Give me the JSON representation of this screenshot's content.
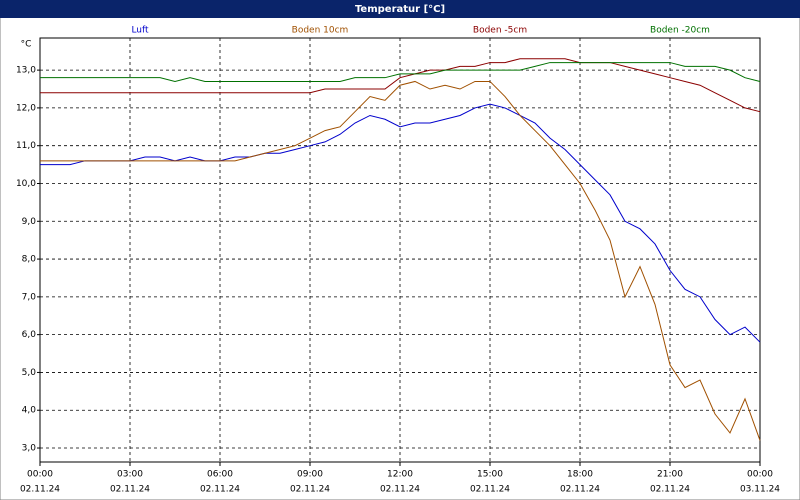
{
  "chart_data": {
    "type": "line",
    "title": "Temperatur [°C]",
    "y_unit": "°C",
    "x": [
      "02.11.24 00:00",
      "02.11.24 00:30",
      "02.11.24 01:00",
      "02.11.24 01:30",
      "02.11.24 02:00",
      "02.11.24 02:30",
      "02.11.24 03:00",
      "02.11.24 03:30",
      "02.11.24 04:00",
      "02.11.24 04:30",
      "02.11.24 05:00",
      "02.11.24 05:30",
      "02.11.24 06:00",
      "02.11.24 06:30",
      "02.11.24 07:00",
      "02.11.24 07:30",
      "02.11.24 08:00",
      "02.11.24 08:30",
      "02.11.24 09:00",
      "02.11.24 09:30",
      "02.11.24 10:00",
      "02.11.24 10:30",
      "02.11.24 11:00",
      "02.11.24 11:30",
      "02.11.24 12:00",
      "02.11.24 12:30",
      "02.11.24 13:00",
      "02.11.24 13:30",
      "02.11.24 14:00",
      "02.11.24 14:30",
      "02.11.24 15:00",
      "02.11.24 15:30",
      "02.11.24 16:00",
      "02.11.24 16:30",
      "02.11.24 17:00",
      "02.11.24 17:30",
      "02.11.24 18:00",
      "02.11.24 18:30",
      "02.11.24 19:00",
      "02.11.24 19:30",
      "02.11.24 20:00",
      "02.11.24 20:30",
      "02.11.24 21:00",
      "02.11.24 21:30",
      "02.11.24 22:00",
      "02.11.24 22:30",
      "02.11.24 23:00",
      "02.11.24 23:30",
      "03.11.24 00:00"
    ],
    "series": [
      {
        "name": "Luft",
        "color": "#0000cc",
        "values": [
          10.5,
          10.5,
          10.5,
          10.6,
          10.6,
          10.6,
          10.6,
          10.7,
          10.7,
          10.6,
          10.7,
          10.6,
          10.6,
          10.7,
          10.7,
          10.8,
          10.8,
          10.9,
          11.0,
          11.1,
          11.3,
          11.6,
          11.8,
          11.7,
          11.5,
          11.6,
          11.6,
          11.7,
          11.8,
          12.0,
          12.1,
          12.0,
          11.8,
          11.6,
          11.2,
          10.9,
          10.5,
          10.1,
          9.7,
          9.0,
          8.8,
          8.4,
          7.7,
          7.2,
          7.0,
          6.4,
          6.0,
          6.2,
          5.8
        ]
      },
      {
        "name": "Boden 10cm",
        "color": "#a05000",
        "values": [
          10.6,
          10.6,
          10.6,
          10.6,
          10.6,
          10.6,
          10.6,
          10.6,
          10.6,
          10.6,
          10.6,
          10.6,
          10.6,
          10.6,
          10.7,
          10.8,
          10.9,
          11.0,
          11.2,
          11.4,
          11.5,
          11.9,
          12.3,
          12.2,
          12.6,
          12.7,
          12.5,
          12.6,
          12.5,
          12.7,
          12.7,
          12.3,
          11.8,
          11.4,
          11.0,
          10.5,
          10.0,
          9.3,
          8.5,
          7.0,
          7.8,
          6.8,
          5.2,
          4.6,
          4.8,
          3.9,
          3.4,
          4.3,
          3.2
        ]
      },
      {
        "name": "Boden -5cm",
        "color": "#8b0000",
        "values": [
          12.4,
          12.4,
          12.4,
          12.4,
          12.4,
          12.4,
          12.4,
          12.4,
          12.4,
          12.4,
          12.4,
          12.4,
          12.4,
          12.4,
          12.4,
          12.4,
          12.4,
          12.4,
          12.4,
          12.5,
          12.5,
          12.5,
          12.5,
          12.5,
          12.8,
          12.9,
          13.0,
          13.0,
          13.1,
          13.1,
          13.2,
          13.2,
          13.3,
          13.3,
          13.3,
          13.3,
          13.2,
          13.2,
          13.2,
          13.1,
          13.0,
          12.9,
          12.8,
          12.7,
          12.6,
          12.4,
          12.2,
          12.0,
          11.9
        ]
      },
      {
        "name": "Boden -20cm",
        "color": "#007000",
        "values": [
          12.8,
          12.8,
          12.8,
          12.8,
          12.8,
          12.8,
          12.8,
          12.8,
          12.8,
          12.7,
          12.8,
          12.7,
          12.7,
          12.7,
          12.7,
          12.7,
          12.7,
          12.7,
          12.7,
          12.7,
          12.7,
          12.8,
          12.8,
          12.8,
          12.9,
          12.9,
          12.9,
          13.0,
          13.0,
          13.0,
          13.0,
          13.0,
          13.0,
          13.1,
          13.2,
          13.2,
          13.2,
          13.2,
          13.2,
          13.2,
          13.2,
          13.2,
          13.2,
          13.1,
          13.1,
          13.1,
          13.0,
          12.8,
          12.7
        ]
      }
    ],
    "ylim": [
      2.63,
      13.85
    ],
    "yticks": [
      {
        "value": 3,
        "label": "3,0"
      },
      {
        "value": 4,
        "label": "4,0"
      },
      {
        "value": 5,
        "label": "5,0"
      },
      {
        "value": 6,
        "label": "6,0"
      },
      {
        "value": 7,
        "label": "7,0"
      },
      {
        "value": 8,
        "label": "8,0"
      },
      {
        "value": 9,
        "label": "9,0"
      },
      {
        "value": 10,
        "label": "10,0"
      },
      {
        "value": 11,
        "label": "11,0"
      },
      {
        "value": 12,
        "label": "12,0"
      },
      {
        "value": 13,
        "label": "13,0"
      }
    ],
    "xlim": [
      "02.11.24 00:00",
      "03.11.24 00:00"
    ],
    "xticks": [
      {
        "value": "02.11.24 00:00",
        "label": [
          "00:00",
          "02.11.24"
        ]
      },
      {
        "value": "02.11.24 03:00",
        "label": [
          "03:00",
          "02.11.24"
        ]
      },
      {
        "value": "02.11.24 06:00",
        "label": [
          "06:00",
          "02.11.24"
        ]
      },
      {
        "value": "02.11.24 09:00",
        "label": [
          "09:00",
          "02.11.24"
        ]
      },
      {
        "value": "02.11.24 12:00",
        "label": [
          "12:00",
          "02.11.24"
        ]
      },
      {
        "value": "02.11.24 15:00",
        "label": [
          "15:00",
          "02.11.24"
        ]
      },
      {
        "value": "02.11.24 18:00",
        "label": [
          "18:00",
          "02.11.24"
        ]
      },
      {
        "value": "02.11.24 21:00",
        "label": [
          "21:00",
          "02.11.24"
        ]
      },
      {
        "value": "03.11.24 00:00",
        "label": [
          "00:00",
          "03.11.24"
        ]
      }
    ],
    "grid": true
  }
}
